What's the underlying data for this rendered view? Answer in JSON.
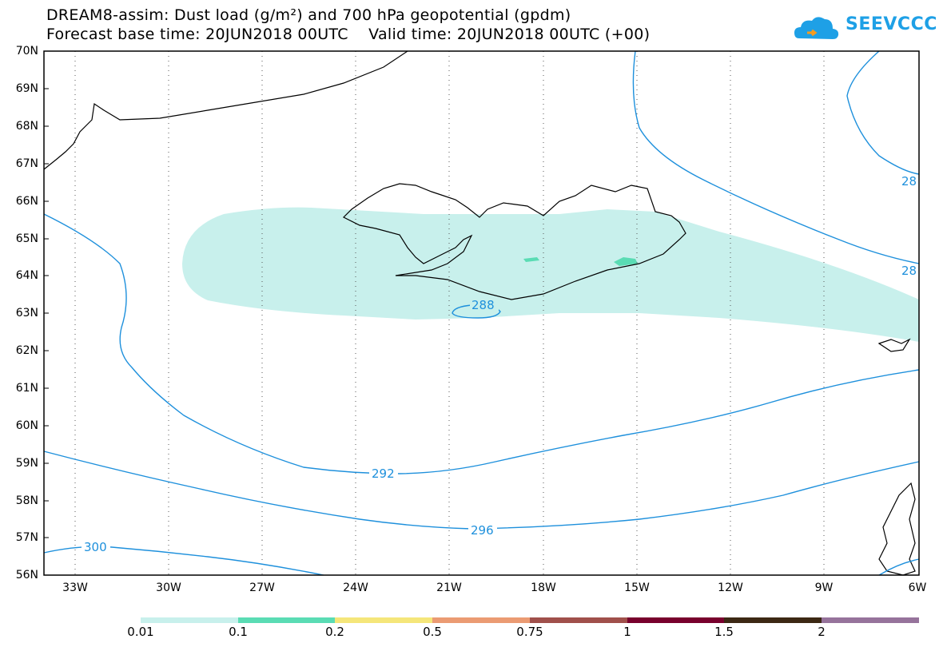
{
  "title": {
    "line1": "DREAM8-assim: Dust load (g/m²) and 700 hPa geopotential (gpdm)",
    "line2": "Forecast base time: 20JUN2018 00UTC    Valid time: 20JUN2018 00UTC (+00)"
  },
  "logo": {
    "text": "SEEVCCC",
    "icon": "cloud-icon"
  },
  "map": {
    "lat_labels": [
      "70N",
      "69N",
      "68N",
      "67N",
      "66N",
      "65N",
      "64N",
      "63N",
      "62N",
      "61N",
      "60N",
      "59N",
      "58N",
      "57N",
      "56N"
    ],
    "lon_labels": [
      "33W",
      "30W",
      "27W",
      "24W",
      "21W",
      "18W",
      "15W",
      "12W",
      "9W",
      "6W"
    ],
    "contour_labels": [
      "288",
      "292",
      "296",
      "300",
      "28",
      "28"
    ]
  },
  "colorbar": {
    "labels": [
      "0.01",
      "0.1",
      "0.2",
      "0.5",
      "0.75",
      "1",
      "1.5",
      "2"
    ],
    "colors": [
      "#c8f0ec",
      "#5adcb4",
      "#f5e67a",
      "#eb9b73",
      "#a0504b",
      "#78002d",
      "#3c2814",
      "#96739b"
    ]
  },
  "colors": {
    "contour": "#1e90dc",
    "dust_light": "#c8f0ec",
    "dust_medium": "#5adcb4"
  }
}
